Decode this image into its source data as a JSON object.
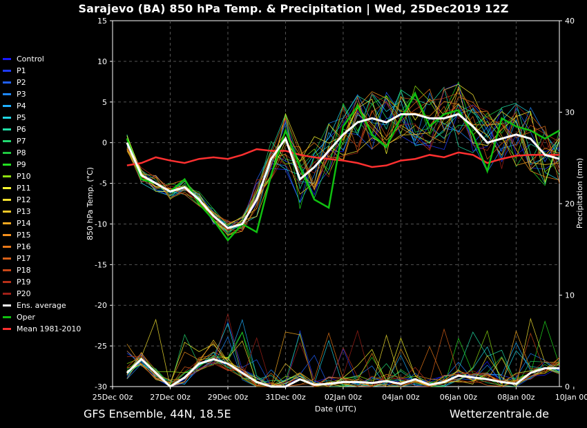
{
  "header": {
    "title": "Sarajevo  (BA)  850 hPa Temp. & Precipitation | Wed, 25Dec2019 12Z"
  },
  "footer": {
    "left": "GFS Ensemble, 44N, 18.5E",
    "right": "Wetterzentrale.de"
  },
  "legend": [
    {
      "name": "Control",
      "color": "#1a1aff"
    },
    {
      "name": "P1",
      "color": "#1f3cff"
    },
    {
      "name": "P2",
      "color": "#2060ff"
    },
    {
      "name": "P3",
      "color": "#1e88ff"
    },
    {
      "name": "P4",
      "color": "#1fb0ff"
    },
    {
      "name": "P5",
      "color": "#20d8e6"
    },
    {
      "name": "P6",
      "color": "#22e0a8"
    },
    {
      "name": "P7",
      "color": "#22d870"
    },
    {
      "name": "P8",
      "color": "#1fc840"
    },
    {
      "name": "P9",
      "color": "#22e020"
    },
    {
      "name": "P10",
      "color": "#8fe010"
    },
    {
      "name": "P11",
      "color": "#ffff30"
    },
    {
      "name": "P12",
      "color": "#f2e030"
    },
    {
      "name": "P13",
      "color": "#f5c828"
    },
    {
      "name": "P14",
      "color": "#f5a820"
    },
    {
      "name": "P15",
      "color": "#f5901c"
    },
    {
      "name": "P16",
      "color": "#e87818"
    },
    {
      "name": "P17",
      "color": "#d86018"
    },
    {
      "name": "P18",
      "color": "#c84818"
    },
    {
      "name": "P19",
      "color": "#b83018"
    },
    {
      "name": "P20",
      "color": "#a02018"
    },
    {
      "name": "Ens. average",
      "color": "#ffffff"
    },
    {
      "name": "Oper",
      "color": "#10c010"
    },
    {
      "name": "Mean 1981-2010",
      "color": "#ff3030"
    }
  ],
  "chart_data": {
    "type": "line",
    "title": "Sarajevo  (BA)  850 hPa Temp. & Precipitation | Wed, 25Dec2019 12Z",
    "xlabel": "Date (UTC)",
    "ylabel": "850 hPa Temp. (°C)",
    "y2label": "Precipitation (mm)",
    "x_ticks": [
      "25Dec 00z",
      "27Dec 00z",
      "29Dec 00z",
      "31Dec 00z",
      "02Jan 00z",
      "04Jan 00z",
      "06Jan 00z",
      "08Jan 00z",
      "10Jan 00z"
    ],
    "x_range_days": [
      0,
      15.5
    ],
    "ylim": [
      -30,
      15
    ],
    "y_ticks": [
      15,
      10,
      5,
      0,
      -5,
      -10,
      -15,
      -20,
      -25,
      -30
    ],
    "y2lim": [
      0,
      40
    ],
    "y2_ticks": [
      40,
      30,
      20,
      10,
      0
    ],
    "grid": true,
    "legend_position": "left",
    "series": [
      {
        "name": "Ens. average",
        "x": [
          0.5,
          1,
          1.5,
          2,
          2.5,
          3,
          3.5,
          4,
          4.5,
          5,
          5.5,
          6,
          6.5,
          7,
          7.5,
          8,
          8.5,
          9,
          9.5,
          10,
          10.5,
          11,
          11.5,
          12,
          12.5,
          13,
          13.5,
          14,
          14.5,
          15,
          15.5
        ],
        "values": [
          0,
          -4,
          -5,
          -6,
          -5.5,
          -7,
          -9,
          -10.5,
          -10,
          -7,
          -2,
          0.5,
          -4.5,
          -3,
          -1,
          1,
          2.5,
          3,
          2.5,
          3.5,
          3.5,
          3,
          3,
          3.5,
          2,
          0,
          0.5,
          1,
          0.5,
          -1.5,
          -2
        ]
      },
      {
        "name": "Oper",
        "x": [
          0.5,
          1,
          1.5,
          2,
          2.5,
          3,
          3.5,
          4,
          4.5,
          5,
          5.5,
          6,
          6.5,
          7,
          7.5,
          8,
          8.5,
          9,
          9.5,
          10,
          10.5,
          11,
          11.5,
          12,
          12.5,
          13,
          13.5,
          14,
          14.5,
          15,
          15.5
        ],
        "values": [
          0.5,
          -4.5,
          -5,
          -6,
          -4.5,
          -7.5,
          -9.5,
          -12,
          -10,
          -11,
          -4,
          1.5,
          -3,
          -7,
          -8,
          2,
          4.5,
          1,
          -0.5,
          3,
          6,
          2,
          3.5,
          4,
          1,
          -3.5,
          3,
          2,
          1.5,
          0.5,
          1.5
        ]
      },
      {
        "name": "Mean 1981-2010",
        "x": [
          0.5,
          1,
          1.5,
          2,
          2.5,
          3,
          3.5,
          4,
          4.5,
          5,
          5.5,
          6,
          6.5,
          7,
          7.5,
          8,
          8.5,
          9,
          9.5,
          10,
          10.5,
          11,
          11.5,
          12,
          12.5,
          13,
          13.5,
          14,
          14.5,
          15,
          15.5
        ],
        "values": [
          -2.8,
          -2.5,
          -1.8,
          -2.2,
          -2.5,
          -2,
          -1.8,
          -2,
          -1.5,
          -0.8,
          -1,
          -1,
          -1.5,
          -1.8,
          -2,
          -2.2,
          -2.5,
          -3,
          -2.8,
          -2.2,
          -2,
          -1.5,
          -1.8,
          -1.2,
          -1.5,
          -2.5,
          -2,
          -1.6,
          -1.5,
          -1.5,
          -1.5
        ]
      },
      {
        "name": "Precip Ens. average",
        "axis": "y2",
        "x": [
          0.5,
          1,
          1.5,
          2,
          2.5,
          3,
          3.5,
          4,
          4.5,
          5,
          5.5,
          6,
          6.5,
          7,
          7.5,
          8,
          8.5,
          9,
          9.5,
          10,
          10.5,
          11,
          11.5,
          12,
          12.5,
          13,
          13.5,
          14,
          14.5,
          15,
          15.5
        ],
        "values": [
          1.5,
          3,
          1.5,
          0,
          1,
          2.5,
          3,
          2.5,
          1.5,
          0.5,
          0,
          0,
          0.8,
          0.2,
          0.3,
          0.5,
          0.5,
          0.4,
          0.6,
          0.3,
          0.8,
          0.2,
          0.5,
          1.2,
          1,
          0.8,
          0.5,
          0.3,
          1.5,
          2,
          2
        ]
      }
    ]
  }
}
